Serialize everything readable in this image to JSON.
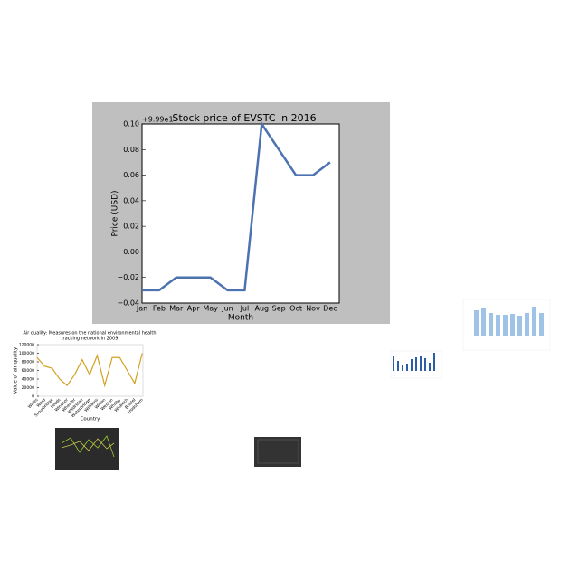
{
  "chart_data": [
    {
      "type": "line",
      "title": "Stock price of EVSTC in 2016",
      "x_label": "Month",
      "y_label": "Price (USD)",
      "offset_text": "+9.99e1",
      "categories": [
        "Jan",
        "Feb",
        "Mar",
        "Apr",
        "May",
        "Jun",
        "Jul",
        "Aug",
        "Sep",
        "Oct",
        "Nov",
        "Dec"
      ],
      "series": [
        {
          "name": "Price",
          "color": "#4c72b0",
          "values": [
            -0.03,
            -0.03,
            -0.02,
            -0.02,
            -0.02,
            -0.03,
            -0.03,
            0.1,
            0.08,
            0.06,
            0.06,
            0.07
          ]
        }
      ],
      "ylim": [
        -0.04,
        0.1
      ],
      "yticks": [
        {
          "value": -0.04,
          "label": "−0.04"
        },
        {
          "value": -0.02,
          "label": "−0.02"
        },
        {
          "value": 0,
          "label": "0.00"
        },
        {
          "value": 0.02,
          "label": "0.02"
        },
        {
          "value": 0.04,
          "label": "0.04"
        },
        {
          "value": 0.06,
          "label": "0.06"
        },
        {
          "value": 0.08,
          "label": "0.08"
        },
        {
          "value": 0.1,
          "label": "0.10"
        }
      ]
    },
    {
      "type": "line",
      "title": [
        "Air quality: Measures on the national environmental health",
        "tracking network in 2009"
      ],
      "x_label": "Country",
      "y_label": "Value of air quality",
      "categories": [
        "Wales",
        "Ward",
        "Stourbridge",
        "Leeds",
        "Windsor",
        "Wheeler",
        "Wildridge",
        "Waterbridge",
        "Williams",
        "Wilton",
        "Weston",
        "Whitby",
        "Wisbech",
        "Bristol",
        "Frodsham"
      ],
      "series": [
        {
          "name": "Air quality",
          "color": "#d4a020",
          "values": [
            90000,
            70000,
            65000,
            40000,
            25000,
            50000,
            85000,
            50000,
            95000,
            25000,
            90000,
            90000,
            60000,
            30000,
            100000
          ]
        }
      ],
      "ylim": [
        0,
        120000
      ],
      "yticks": [
        0,
        20000,
        40000,
        60000,
        80000,
        100000,
        120000
      ]
    }
  ]
}
